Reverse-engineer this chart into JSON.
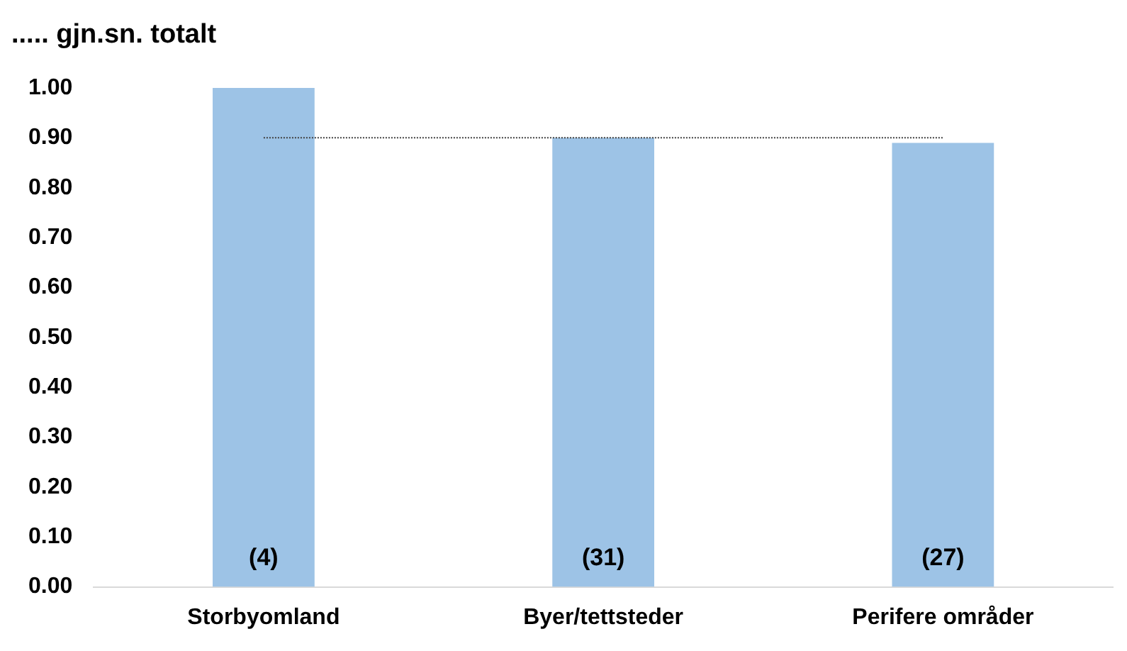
{
  "chart_data": {
    "type": "bar",
    "title": "..... gjn.sn. totalt",
    "categories": [
      "Storbyomland",
      "Byer/tettsteder",
      "Perifere områder"
    ],
    "values": [
      1.0,
      0.9,
      0.89
    ],
    "color": "#9dc3e6",
    "ylim": [
      0,
      1.0
    ],
    "yticks": [
      {
        "value": 0,
        "label": "0.00"
      },
      {
        "value": 0.1,
        "label": "0.10"
      },
      {
        "value": 0.2,
        "label": "0.20"
      },
      {
        "value": 0.3,
        "label": "0.30"
      },
      {
        "value": 0.4,
        "label": "0.40"
      },
      {
        "value": 0.5,
        "label": "0.50"
      },
      {
        "value": 0.6,
        "label": "0.60"
      },
      {
        "value": 0.7,
        "label": "0.70"
      },
      {
        "value": 0.8,
        "label": "0.80"
      },
      {
        "value": 0.9,
        "label": "0.90"
      },
      {
        "value": 1.0,
        "label": "1.00"
      }
    ],
    "grid": false,
    "legend": false,
    "ref_lines": [
      {
        "axis": "y",
        "value": 0.9,
        "color": "#404040",
        "line_style": "dotted"
      }
    ],
    "annotations": [
      "(4)",
      "(31)",
      "(27)"
    ]
  }
}
